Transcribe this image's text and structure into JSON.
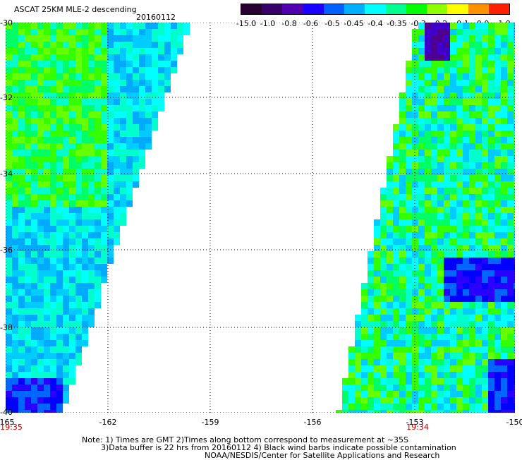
{
  "header": {
    "title": "ASCAT 25KM MLE-2 descending",
    "date": "20160112"
  },
  "colorbar": {
    "labels": [
      "-15.0",
      "-1.0",
      "-0.8",
      "-0.6",
      "-0.5",
      "-0.45",
      "-0.4",
      "-0.35",
      "-0.3",
      "-0.2",
      "-0.1",
      "0.0",
      "1.0"
    ],
    "colors": [
      "#2a0030",
      "#3a006a",
      "#5000b0",
      "#1a00ff",
      "#0060ff",
      "#00b0ff",
      "#00ffff",
      "#00ff90",
      "#00ff00",
      "#90ff00",
      "#ffff00",
      "#ff9000",
      "#ff2000"
    ]
  },
  "axes": {
    "lat_labels": [
      "-30",
      "-32",
      "-34",
      "-36",
      "-38",
      "-40"
    ],
    "lon_labels": [
      "-165",
      "-162",
      "-159",
      "-156",
      "-153",
      "-150"
    ],
    "time_labels": [
      "19:35",
      "19:34"
    ]
  },
  "notes": {
    "line1": "Note: 1) Times are GMT 2)Times along bottom correspond to measurement at ~35S",
    "line2": "3)Data buffer is 22 hrs from 20160112 4) Black wind barbs indicate possible contamination",
    "line3": "NOAA/NESDIS/Center for Satellite Applications and Research"
  }
}
